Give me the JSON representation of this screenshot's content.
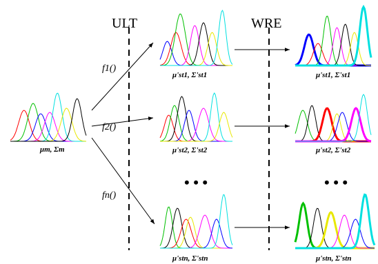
{
  "divider_labels": {
    "ult": "ULT",
    "wre": "WRE"
  },
  "source": {
    "caption": "μm, Σm"
  },
  "functions": [
    "f1()",
    "f2()",
    "fn()"
  ],
  "ult_outputs": [
    "μ'st1, Σ'st1",
    "μ'st2, Σ'st2",
    "μ'stn, Σ'stn"
  ],
  "wre_outputs": [
    "μ'st1, Σ'st1",
    "μ'st2, Σ'st2",
    "μ'stn, Σ'stn"
  ],
  "ellipsis": "• • •",
  "curve_colors": [
    "#ff0000",
    "#00c000",
    "#0000ff",
    "#ff00ff",
    "#00e0e0",
    "#e8e800",
    "#000000"
  ]
}
